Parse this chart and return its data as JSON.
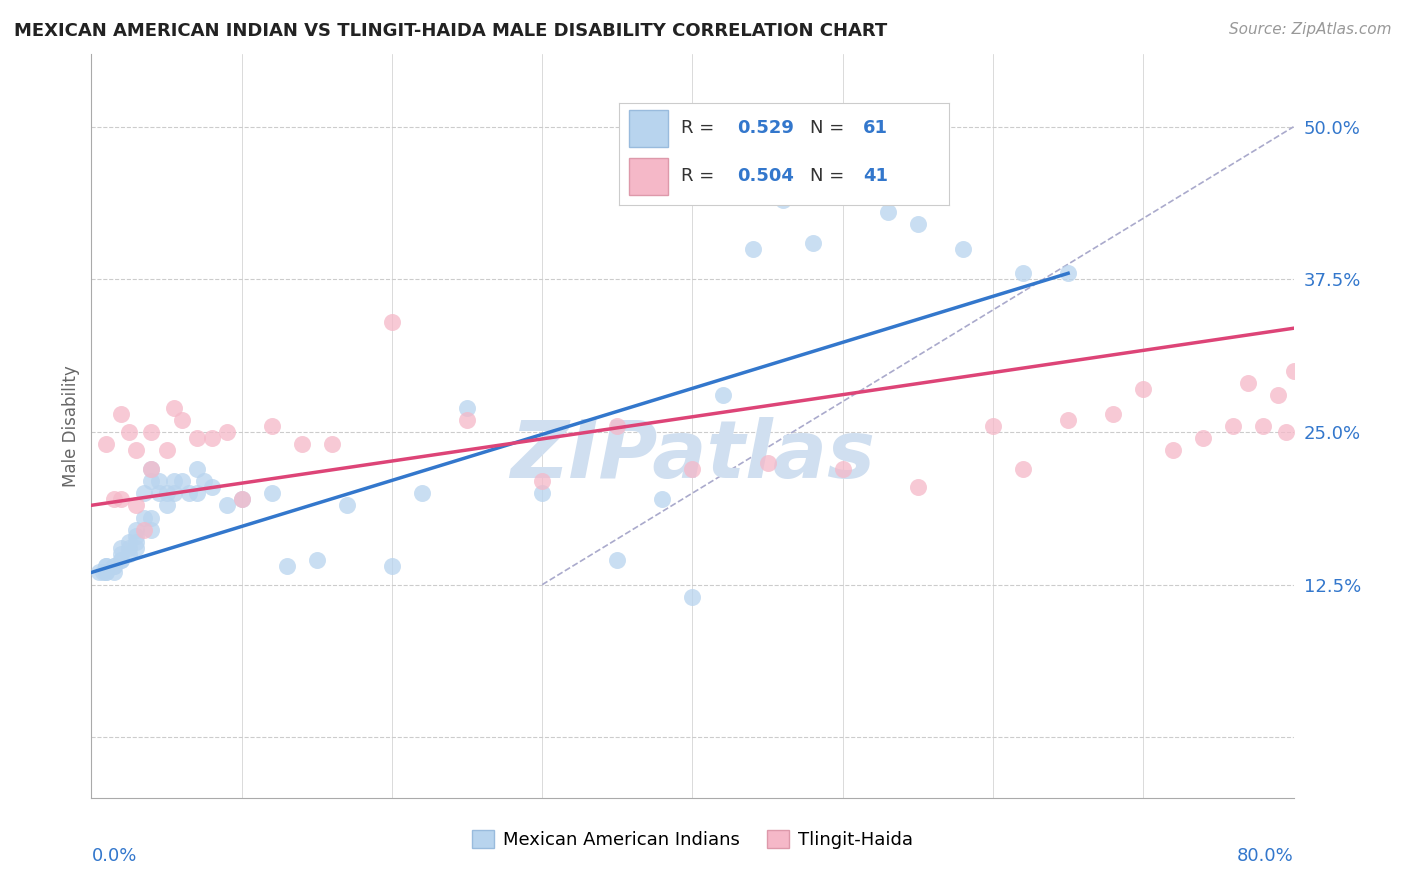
{
  "title": "MEXICAN AMERICAN INDIAN VS TLINGIT-HAIDA MALE DISABILITY CORRELATION CHART",
  "source": "Source: ZipAtlas.com",
  "ylabel": "Male Disability",
  "ytick_vals": [
    0.0,
    0.125,
    0.25,
    0.375,
    0.5
  ],
  "ytick_labels": [
    "",
    "12.5%",
    "25.0%",
    "37.5%",
    "50.0%"
  ],
  "xlim": [
    0.0,
    0.8
  ],
  "ylim": [
    -0.05,
    0.56
  ],
  "legend_r1": "0.529",
  "legend_n1": "61",
  "legend_r2": "0.504",
  "legend_n2": "41",
  "blue_fill": "#b8d4ee",
  "pink_fill": "#f5b8c8",
  "blue_line_color": "#3377cc",
  "pink_line_color": "#dd4477",
  "ref_line_color": "#aaaacc",
  "text_blue": "#3377cc",
  "watermark_color": "#d0dff0",
  "grid_color": "#cccccc",
  "title_color": "#222222",
  "source_color": "#999999",
  "ylabel_color": "#666666",
  "blue_scatter_x": [
    0.005,
    0.008,
    0.01,
    0.01,
    0.01,
    0.01,
    0.015,
    0.015,
    0.015,
    0.02,
    0.02,
    0.02,
    0.02,
    0.025,
    0.025,
    0.025,
    0.03,
    0.03,
    0.03,
    0.03,
    0.035,
    0.035,
    0.04,
    0.04,
    0.04,
    0.04,
    0.045,
    0.045,
    0.05,
    0.05,
    0.055,
    0.055,
    0.06,
    0.065,
    0.07,
    0.07,
    0.075,
    0.08,
    0.09,
    0.1,
    0.12,
    0.13,
    0.15,
    0.17,
    0.2,
    0.22,
    0.25,
    0.3,
    0.35,
    0.38,
    0.4,
    0.42,
    0.44,
    0.46,
    0.48,
    0.5,
    0.53,
    0.55,
    0.58,
    0.62,
    0.65
  ],
  "blue_scatter_y": [
    0.135,
    0.135,
    0.135,
    0.135,
    0.14,
    0.14,
    0.135,
    0.14,
    0.14,
    0.145,
    0.145,
    0.15,
    0.155,
    0.15,
    0.155,
    0.16,
    0.155,
    0.16,
    0.165,
    0.17,
    0.18,
    0.2,
    0.17,
    0.18,
    0.21,
    0.22,
    0.2,
    0.21,
    0.19,
    0.2,
    0.2,
    0.21,
    0.21,
    0.2,
    0.2,
    0.22,
    0.21,
    0.205,
    0.19,
    0.195,
    0.2,
    0.14,
    0.145,
    0.19,
    0.14,
    0.2,
    0.27,
    0.2,
    0.145,
    0.195,
    0.115,
    0.28,
    0.4,
    0.44,
    0.405,
    0.46,
    0.43,
    0.42,
    0.4,
    0.38,
    0.38
  ],
  "pink_scatter_x": [
    0.01,
    0.015,
    0.02,
    0.02,
    0.025,
    0.03,
    0.03,
    0.035,
    0.04,
    0.04,
    0.05,
    0.055,
    0.06,
    0.07,
    0.08,
    0.09,
    0.1,
    0.12,
    0.14,
    0.16,
    0.2,
    0.25,
    0.3,
    0.35,
    0.4,
    0.45,
    0.5,
    0.55,
    0.6,
    0.62,
    0.65,
    0.68,
    0.7,
    0.72,
    0.74,
    0.76,
    0.77,
    0.78,
    0.79,
    0.795,
    0.8
  ],
  "pink_scatter_y": [
    0.24,
    0.195,
    0.195,
    0.265,
    0.25,
    0.235,
    0.19,
    0.17,
    0.25,
    0.22,
    0.235,
    0.27,
    0.26,
    0.245,
    0.245,
    0.25,
    0.195,
    0.255,
    0.24,
    0.24,
    0.34,
    0.26,
    0.21,
    0.255,
    0.22,
    0.225,
    0.22,
    0.205,
    0.255,
    0.22,
    0.26,
    0.265,
    0.285,
    0.235,
    0.245,
    0.255,
    0.29,
    0.255,
    0.28,
    0.25,
    0.3
  ],
  "blue_line_x0": 0.0,
  "blue_line_y0": 0.135,
  "blue_line_x1": 0.65,
  "blue_line_y1": 0.38,
  "pink_line_x0": 0.0,
  "pink_line_y0": 0.19,
  "pink_line_x1": 0.8,
  "pink_line_y1": 0.335,
  "ref_line_x0": 0.3,
  "ref_line_y0": 0.125,
  "ref_line_x1": 0.8,
  "ref_line_y1": 0.5
}
